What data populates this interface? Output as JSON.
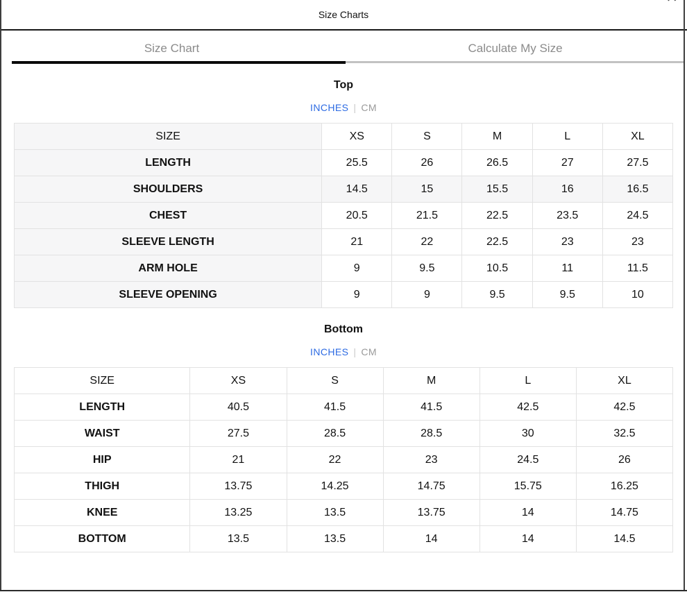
{
  "modal": {
    "title": "Size Charts",
    "close_icon": "✕"
  },
  "tabs": {
    "size_chart_label": "Size Chart",
    "calculate_label": "Calculate My Size",
    "active_tab": "Size Chart"
  },
  "units": {
    "inches_label": "INCHES",
    "separator": "|",
    "cm_label": "CM",
    "selected": "INCHES"
  },
  "colors": {
    "accent_blue": "#2d6be3",
    "inactive_unit_gray": "#9a9a9a",
    "tab_text_gray": "#8b8b8b",
    "active_tab_underline": "#0a0a0a",
    "row_highlight": "#f6f6f7",
    "table_border": "#e2e2e2"
  },
  "top_chart": {
    "title": "Top",
    "type": "table",
    "columns": [
      "SIZE",
      "XS",
      "S",
      "M",
      "L",
      "XL"
    ],
    "rows": [
      {
        "label": "LENGTH",
        "values": [
          "25.5",
          "26",
          "26.5",
          "27",
          "27.5"
        ],
        "highlight": false
      },
      {
        "label": "SHOULDERS",
        "values": [
          "14.5",
          "15",
          "15.5",
          "16",
          "16.5"
        ],
        "highlight": true
      },
      {
        "label": "CHEST",
        "values": [
          "20.5",
          "21.5",
          "22.5",
          "23.5",
          "24.5"
        ],
        "highlight": false
      },
      {
        "label": "SLEEVE LENGTH",
        "values": [
          "21",
          "22",
          "22.5",
          "23",
          "23"
        ],
        "highlight": false
      },
      {
        "label": "ARM HOLE",
        "values": [
          "9",
          "9.5",
          "10.5",
          "11",
          "11.5"
        ],
        "highlight": false
      },
      {
        "label": "SLEEVE OPENING",
        "values": [
          "9",
          "9",
          "9.5",
          "9.5",
          "10"
        ],
        "highlight": false
      }
    ]
  },
  "bottom_chart": {
    "title": "Bottom",
    "type": "table",
    "columns": [
      "SIZE",
      "XS",
      "S",
      "M",
      "L",
      "XL"
    ],
    "rows": [
      {
        "label": "LENGTH",
        "values": [
          "40.5",
          "41.5",
          "41.5",
          "42.5",
          "42.5"
        ],
        "highlight": false
      },
      {
        "label": "WAIST",
        "values": [
          "27.5",
          "28.5",
          "28.5",
          "30",
          "32.5"
        ],
        "highlight": false
      },
      {
        "label": "HIP",
        "values": [
          "21",
          "22",
          "23",
          "24.5",
          "26"
        ],
        "highlight": false
      },
      {
        "label": "THIGH",
        "values": [
          "13.75",
          "14.25",
          "14.75",
          "15.75",
          "16.25"
        ],
        "highlight": false
      },
      {
        "label": "KNEE",
        "values": [
          "13.25",
          "13.5",
          "13.75",
          "14",
          "14.75"
        ],
        "highlight": false
      },
      {
        "label": "BOTTOM",
        "values": [
          "13.5",
          "13.5",
          "14",
          "14",
          "14.5"
        ],
        "highlight": false
      }
    ]
  }
}
